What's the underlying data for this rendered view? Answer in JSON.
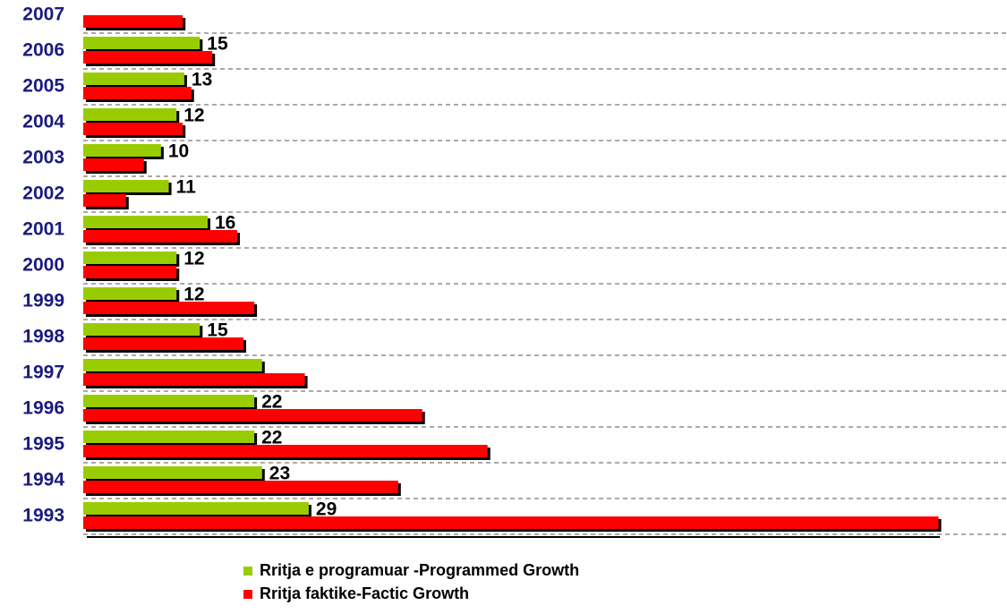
{
  "chart_data": {
    "type": "bar",
    "orientation": "horizontal",
    "categories": [
      "2007",
      "2006",
      "2005",
      "2004",
      "2003",
      "2002",
      "2001",
      "2000",
      "1999",
      "1998",
      "1997",
      "1996",
      "1995",
      "1994",
      "1993"
    ],
    "series": [
      {
        "name": "Rritja e programuar -Programmed Growth",
        "color": "#99cc00",
        "values": [
          null,
          15,
          13,
          12,
          10,
          11,
          16,
          12,
          12,
          15,
          23,
          22,
          22,
          23,
          29
        ],
        "value_labels": [
          null,
          "15",
          "13",
          "12",
          "10",
          "11",
          "16",
          "12",
          "12",
          "15",
          null,
          "22",
          "22",
          "23",
          "29"
        ]
      },
      {
        "name": "Rritja faktike-Factic Growth",
        "color": "#ff0000",
        "values": [
          12.8,
          16.6,
          13.9,
          12.8,
          7.8,
          5.5,
          19.8,
          12,
          22,
          20.6,
          28.5,
          43.6,
          52,
          40.5,
          110
        ]
      }
    ],
    "xlim": [
      0,
      118
    ],
    "grid": true
  }
}
